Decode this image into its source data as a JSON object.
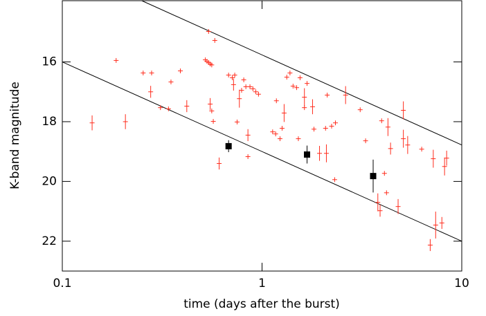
{
  "chart_data": {
    "type": "scatter",
    "xlabel": "time (days after the burst)",
    "ylabel": "K-band magnitude",
    "xscale": "log",
    "xlim": [
      0.1,
      10
    ],
    "xticks": [
      0.1,
      1,
      10
    ],
    "ylim": [
      23,
      13.95
    ],
    "yticks": [
      16,
      18,
      20,
      22
    ],
    "lines": [
      {
        "color": "#000000",
        "x": [
          0.25,
          10
        ],
        "y": [
          13.95,
          18.78
        ]
      },
      {
        "color": "#000000",
        "x": [
          0.1,
          10
        ],
        "y": [
          16,
          22
        ]
      }
    ],
    "series": [
      {
        "color": "#ff2a1a",
        "marker": "cross",
        "x": [
          0.141,
          0.186,
          0.207,
          0.254,
          0.28,
          0.277,
          0.31,
          0.34,
          0.35,
          0.39,
          0.42,
          0.54,
          0.52,
          0.53,
          0.54,
          0.55,
          0.56,
          0.55,
          0.56,
          0.57,
          0.58,
          0.61,
          0.68,
          0.71,
          0.72,
          0.73,
          0.75,
          0.77,
          0.79,
          0.81,
          0.83,
          0.85,
          0.85,
          0.87,
          0.9,
          0.93,
          0.96,
          1.13,
          1.17,
          1.18,
          1.23,
          1.26,
          1.29,
          1.33,
          1.38,
          1.43,
          1.49,
          1.52,
          1.55,
          1.63,
          1.63,
          1.68,
          1.79,
          1.82,
          1.94,
          2.1,
          2.08,
          2.12,
          2.23,
          2.33,
          2.31,
          2.62,
          3.1,
          3.3,
          3.97,
          4.1,
          4.27,
          4.2,
          4.4,
          3.8,
          3.9,
          4.8,
          5.1,
          5.1,
          5.36,
          6.3,
          6.95,
          7.2,
          7.4,
          7.95,
          8.2,
          8.4
        ],
        "y": [
          18.04,
          15.95,
          18.0,
          16.37,
          16.37,
          17.0,
          17.53,
          17.57,
          16.67,
          16.3,
          17.48,
          14.98,
          15.93,
          15.98,
          16.02,
          16.07,
          16.1,
          17.41,
          17.64,
          17.99,
          15.28,
          19.4,
          16.44,
          16.53,
          16.76,
          16.44,
          18.01,
          17.23,
          16.95,
          16.6,
          16.83,
          18.45,
          19.17,
          16.83,
          16.9,
          17.0,
          17.08,
          18.34,
          18.41,
          17.3,
          18.57,
          18.22,
          17.71,
          16.51,
          16.37,
          16.81,
          16.86,
          18.57,
          16.53,
          17.18,
          17.53,
          16.72,
          17.5,
          18.25,
          19.06,
          19.06,
          18.22,
          17.11,
          18.15,
          18.04,
          19.94,
          17.11,
          17.6,
          18.64,
          17.97,
          19.73,
          18.18,
          20.38,
          18.9,
          20.7,
          20.98,
          20.84,
          17.62,
          18.57,
          18.78,
          18.92,
          22.13,
          19.24,
          21.46,
          21.39,
          19.5,
          19.22
        ],
        "yerr": [
          0.25,
          0.08,
          0.25,
          0.08,
          0.08,
          0.2,
          0.08,
          0.08,
          0.08,
          0.08,
          0.2,
          0.08,
          0.08,
          0.08,
          0.08,
          0.08,
          0.08,
          0.2,
          0.08,
          0.08,
          0.08,
          0.2,
          0.08,
          0.08,
          0.2,
          0.08,
          0.08,
          0.3,
          0.08,
          0.08,
          0.08,
          0.2,
          0.08,
          0.08,
          0.08,
          0.08,
          0.08,
          0.08,
          0.08,
          0.08,
          0.08,
          0.08,
          0.3,
          0.08,
          0.08,
          0.08,
          0.08,
          0.08,
          0.08,
          0.3,
          0.08,
          0.08,
          0.25,
          0.08,
          0.25,
          0.3,
          0.08,
          0.08,
          0.08,
          0.08,
          0.08,
          0.3,
          0.08,
          0.08,
          0.08,
          0.08,
          0.3,
          0.08,
          0.2,
          0.3,
          0.2,
          0.25,
          0.3,
          0.3,
          0.3,
          0.08,
          0.2,
          0.3,
          0.45,
          0.2,
          0.3,
          0.25
        ]
      },
      {
        "color": "#000000",
        "marker": "square",
        "x": [
          0.68,
          1.68,
          3.6
        ],
        "y": [
          18.82,
          19.1,
          19.82
        ],
        "yerr": [
          0.2,
          0.3,
          0.55
        ]
      }
    ]
  }
}
